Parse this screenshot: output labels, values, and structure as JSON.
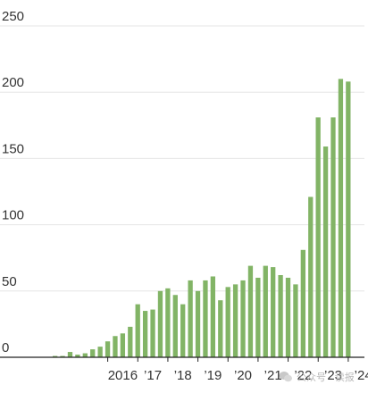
{
  "chart_data": {
    "type": "bar",
    "title": "",
    "xlabel": "",
    "ylabel": "",
    "ylim": [
      0,
      250
    ],
    "yticks": [
      0,
      50,
      100,
      150,
      200,
      250
    ],
    "grid": true,
    "bar_color": "#82b466",
    "x_tick_labels": [
      {
        "label": "2016",
        "quarter_index": 9
      },
      {
        "label": "’17",
        "quarter_index": 13
      },
      {
        "label": "’18",
        "quarter_index": 17
      },
      {
        "label": "’19",
        "quarter_index": 21
      },
      {
        "label": "’20",
        "quarter_index": 25
      },
      {
        "label": "’21",
        "quarter_index": 29
      },
      {
        "label": "’22",
        "quarter_index": 33
      },
      {
        "label": "’23",
        "quarter_index": 37
      },
      {
        "label": "’24",
        "quarter_index": 41
      }
    ],
    "values": [
      1,
      1,
      4,
      2,
      3,
      6,
      8,
      12,
      16,
      18,
      23,
      40,
      35,
      36,
      50,
      52,
      47,
      40,
      58,
      50,
      58,
      61,
      43,
      53,
      55,
      58,
      69,
      60,
      69,
      68,
      62,
      60,
      55,
      81,
      121,
      181,
      159,
      181,
      210,
      208
    ]
  },
  "watermark": {
    "text": "公众号 · 读报",
    "icon": "wechat-icon"
  }
}
